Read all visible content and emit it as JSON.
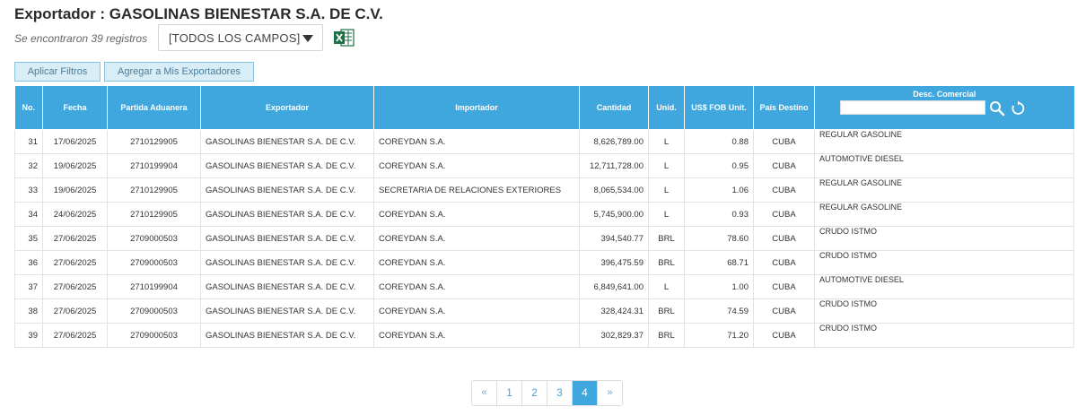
{
  "header": {
    "title": "Exportador : GASOLINAS BIENESTAR S.A. DE C.V.",
    "records": "Se encontraron 39 registros",
    "field_select": "[TODOS LOS CAMPOS]",
    "excel_icon": "excel-icon"
  },
  "toolbar": {
    "apply_filters": "Aplicar Filtros",
    "add_exporters": "Agregar a Mis Exportadores"
  },
  "table": {
    "columns": {
      "no": "No.",
      "fecha": "Fecha",
      "partida": "Partida Aduanera",
      "exportador": "Exportador",
      "importador": "Importador",
      "cantidad": "Cantidad",
      "unid": "Unid.",
      "fob": "US$ FOB Unit.",
      "pais": "País Destino",
      "desc": "Desc. Comercial"
    },
    "desc_filter_value": "",
    "rows": [
      {
        "no": "31",
        "fecha": "17/06/2025",
        "partida": "2710129905",
        "exportador": "GASOLINAS BIENESTAR S.A. DE C.V.",
        "importador": "COREYDAN S.A.",
        "cantidad": "8,626,789.00",
        "unid": "L",
        "fob": "0.88",
        "pais": "CUBA",
        "desc": "REGULAR GASOLINE"
      },
      {
        "no": "32",
        "fecha": "19/06/2025",
        "partida": "2710199904",
        "exportador": "GASOLINAS BIENESTAR S.A. DE C.V.",
        "importador": "COREYDAN S.A.",
        "cantidad": "12,711,728.00",
        "unid": "L",
        "fob": "0.95",
        "pais": "CUBA",
        "desc": "AUTOMOTIVE DIESEL"
      },
      {
        "no": "33",
        "fecha": "19/06/2025",
        "partida": "2710129905",
        "exportador": "GASOLINAS BIENESTAR S.A. DE C.V.",
        "importador": "SECRETARIA DE RELACIONES EXTERIORES",
        "cantidad": "8,065,534.00",
        "unid": "L",
        "fob": "1.06",
        "pais": "CUBA",
        "desc": "REGULAR GASOLINE"
      },
      {
        "no": "34",
        "fecha": "24/06/2025",
        "partida": "2710129905",
        "exportador": "GASOLINAS BIENESTAR S.A. DE C.V.",
        "importador": "COREYDAN S.A.",
        "cantidad": "5,745,900.00",
        "unid": "L",
        "fob": "0.93",
        "pais": "CUBA",
        "desc": "REGULAR GASOLINE"
      },
      {
        "no": "35",
        "fecha": "27/06/2025",
        "partida": "2709000503",
        "exportador": "GASOLINAS BIENESTAR S.A. DE C.V.",
        "importador": "COREYDAN S.A.",
        "cantidad": "394,540.77",
        "unid": "BRL",
        "fob": "78.60",
        "pais": "CUBA",
        "desc": "CRUDO ISTMO"
      },
      {
        "no": "36",
        "fecha": "27/06/2025",
        "partida": "2709000503",
        "exportador": "GASOLINAS BIENESTAR S.A. DE C.V.",
        "importador": "COREYDAN S.A.",
        "cantidad": "396,475.59",
        "unid": "BRL",
        "fob": "68.71",
        "pais": "CUBA",
        "desc": "CRUDO ISTMO"
      },
      {
        "no": "37",
        "fecha": "27/06/2025",
        "partida": "2710199904",
        "exportador": "GASOLINAS BIENESTAR S.A. DE C.V.",
        "importador": "COREYDAN S.A.",
        "cantidad": "6,849,641.00",
        "unid": "L",
        "fob": "1.00",
        "pais": "CUBA",
        "desc": "AUTOMOTIVE DIESEL"
      },
      {
        "no": "38",
        "fecha": "27/06/2025",
        "partida": "2709000503",
        "exportador": "GASOLINAS BIENESTAR S.A. DE C.V.",
        "importador": "COREYDAN S.A.",
        "cantidad": "328,424.31",
        "unid": "BRL",
        "fob": "74.59",
        "pais": "CUBA",
        "desc": "CRUDO ISTMO"
      },
      {
        "no": "39",
        "fecha": "27/06/2025",
        "partida": "2709000503",
        "exportador": "GASOLINAS BIENESTAR S.A. DE C.V.",
        "importador": "COREYDAN S.A.",
        "cantidad": "302,829.37",
        "unid": "BRL",
        "fob": "71.20",
        "pais": "CUBA",
        "desc": "CRUDO ISTMO"
      }
    ]
  },
  "pagination": {
    "prev": "«",
    "pages": [
      "1",
      "2",
      "3",
      "4"
    ],
    "active_page": "4",
    "next": "»"
  },
  "colors": {
    "header_blue": "#3fa7dd",
    "button_bg": "#d9edf7",
    "excel_green": "#1d7044"
  }
}
